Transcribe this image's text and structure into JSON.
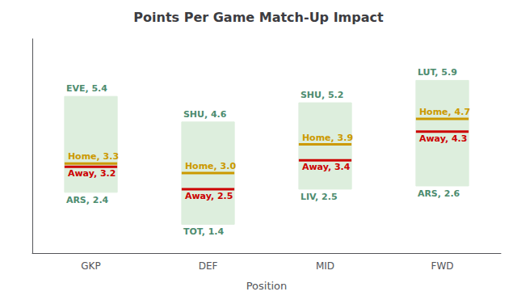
{
  "chart_data": {
    "type": "range_bar",
    "title": "Points Per Game Match-Up Impact",
    "xlabel": "Position",
    "categories": [
      "GKP",
      "DEF",
      "MID",
      "FWD"
    ],
    "ylim": [
      0.5,
      7.2
    ],
    "grid": false,
    "tick_labels": "x",
    "data_labels": true,
    "series": [
      {
        "type": "range",
        "color": "#ddeedd",
        "low": [
          2.4,
          1.4,
          2.5,
          2.6
        ],
        "high": [
          5.4,
          4.6,
          5.2,
          5.9
        ],
        "low_labels": [
          "ARS, 2.4",
          "TOT, 1.4",
          "LIV, 2.5",
          "ARS, 2.6"
        ],
        "high_labels": [
          "EVE, 5.4",
          "SHU, 4.6",
          "SHU, 5.2",
          "LUT, 5.9"
        ]
      },
      {
        "type": "level",
        "color": "#cc9900",
        "values": [
          3.3,
          3.0,
          3.9,
          4.7
        ],
        "value_labels": [
          "Home, 3.3",
          "Home, 3.0",
          "Home, 3.9",
          "Home, 4.7"
        ]
      },
      {
        "type": "level",
        "color": "#cc0000",
        "values": [
          3.2,
          2.5,
          3.4,
          4.3
        ],
        "value_labels": [
          "Away, 3.2",
          "Away, 2.5",
          "Away, 3.4",
          "Away, 4.3"
        ]
      }
    ]
  }
}
